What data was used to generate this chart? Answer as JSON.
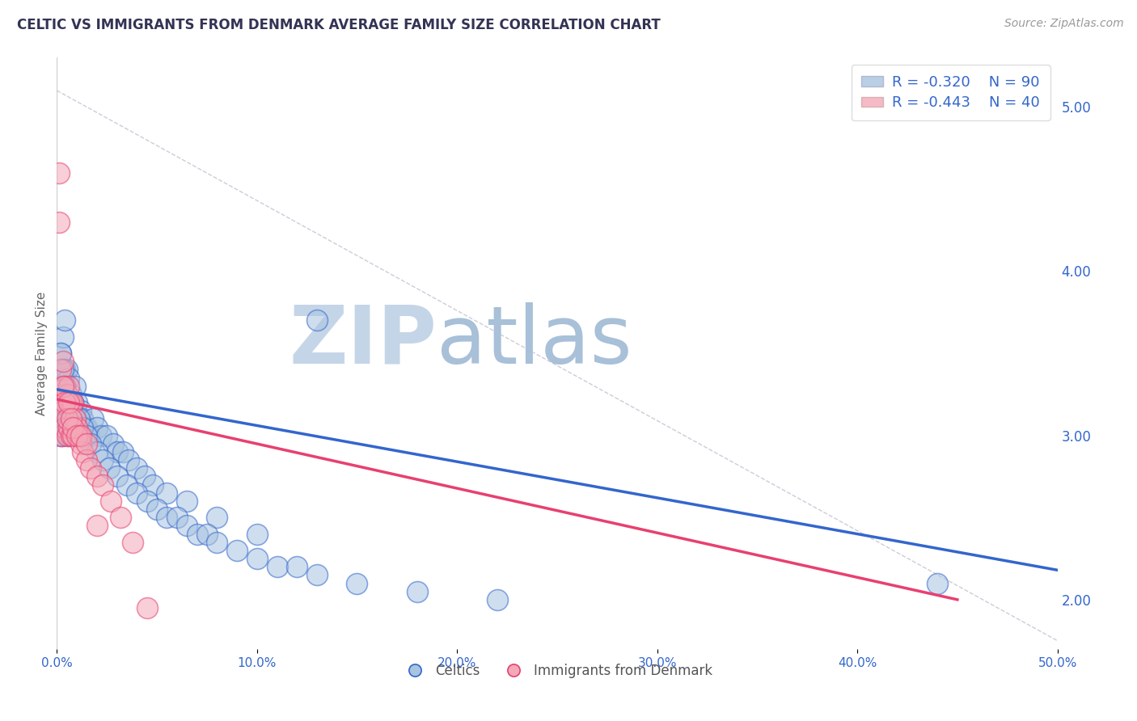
{
  "title": "CELTIC VS IMMIGRANTS FROM DENMARK AVERAGE FAMILY SIZE CORRELATION CHART",
  "source_text": "Source: ZipAtlas.com",
  "ylabel": "Average Family Size",
  "xlim": [
    0.0,
    0.5
  ],
  "ylim": [
    1.7,
    5.3
  ],
  "yticks_right": [
    2.0,
    3.0,
    4.0,
    5.0
  ],
  "xticks": [
    0.0,
    0.1,
    0.2,
    0.3,
    0.4,
    0.5
  ],
  "xtick_labels": [
    "0.0%",
    "10.0%",
    "20.0%",
    "30.0%",
    "40.0%",
    "50.0%"
  ],
  "legend_r1": "R = -0.320",
  "legend_n1": "N = 90",
  "legend_r2": "R = -0.443",
  "legend_n2": "N = 40",
  "legend_label1": "Celtics",
  "legend_label2": "Immigrants from Denmark",
  "blue_color": "#A8C4E0",
  "pink_color": "#F4A8B8",
  "blue_line_color": "#3366CC",
  "pink_line_color": "#E84070",
  "watermark": "ZIPatlas",
  "watermark_color_zip": "#C5D5E8",
  "watermark_color_atlas": "#A8C0D8",
  "title_color": "#333355",
  "blue_trend_x": [
    0.0,
    0.5
  ],
  "blue_trend_y": [
    3.28,
    2.18
  ],
  "pink_trend_x": [
    0.0,
    0.45
  ],
  "pink_trend_y": [
    3.22,
    2.0
  ],
  "ref_line_x": [
    0.0,
    0.5
  ],
  "ref_line_y": [
    5.1,
    1.75
  ],
  "background_color": "#FFFFFF",
  "grid_color": "#DDDDEE",
  "title_fontsize": 12,
  "source_fontsize": 10,
  "legend_fontsize": 13,
  "blue_scatter_x": [
    0.001,
    0.001,
    0.001,
    0.002,
    0.002,
    0.002,
    0.002,
    0.003,
    0.003,
    0.003,
    0.003,
    0.004,
    0.004,
    0.004,
    0.005,
    0.005,
    0.005,
    0.006,
    0.006,
    0.006,
    0.007,
    0.007,
    0.008,
    0.008,
    0.009,
    0.009,
    0.01,
    0.01,
    0.011,
    0.012,
    0.013,
    0.014,
    0.015,
    0.016,
    0.018,
    0.02,
    0.022,
    0.025,
    0.028,
    0.03,
    0.033,
    0.036,
    0.04,
    0.044,
    0.048,
    0.055,
    0.065,
    0.08,
    0.1,
    0.13,
    0.001,
    0.002,
    0.002,
    0.003,
    0.003,
    0.004,
    0.005,
    0.006,
    0.007,
    0.008,
    0.009,
    0.01,
    0.011,
    0.012,
    0.013,
    0.015,
    0.017,
    0.02,
    0.023,
    0.026,
    0.03,
    0.035,
    0.04,
    0.045,
    0.05,
    0.055,
    0.06,
    0.065,
    0.07,
    0.075,
    0.08,
    0.09,
    0.1,
    0.11,
    0.12,
    0.13,
    0.15,
    0.18,
    0.22,
    0.44
  ],
  "blue_scatter_y": [
    3.3,
    3.2,
    3.1,
    3.5,
    3.3,
    3.15,
    3.0,
    3.6,
    3.35,
    3.15,
    3.0,
    3.7,
    3.4,
    3.1,
    3.4,
    3.2,
    3.05,
    3.35,
    3.15,
    3.0,
    3.25,
    3.05,
    3.2,
    3.05,
    3.3,
    3.1,
    3.2,
    3.0,
    3.1,
    3.15,
    3.1,
    3.05,
    3.05,
    3.0,
    3.1,
    3.05,
    3.0,
    3.0,
    2.95,
    2.9,
    2.9,
    2.85,
    2.8,
    2.75,
    2.7,
    2.65,
    2.6,
    2.5,
    2.4,
    3.7,
    3.25,
    3.5,
    3.2,
    3.4,
    3.1,
    3.3,
    3.2,
    3.1,
    3.15,
    3.2,
    3.1,
    3.05,
    3.1,
    3.0,
    3.05,
    3.0,
    2.95,
    2.9,
    2.85,
    2.8,
    2.75,
    2.7,
    2.65,
    2.6,
    2.55,
    2.5,
    2.5,
    2.45,
    2.4,
    2.4,
    2.35,
    2.3,
    2.25,
    2.2,
    2.2,
    2.15,
    2.1,
    2.05,
    2.0,
    2.1
  ],
  "pink_scatter_x": [
    0.001,
    0.001,
    0.002,
    0.002,
    0.002,
    0.003,
    0.003,
    0.004,
    0.004,
    0.005,
    0.005,
    0.006,
    0.006,
    0.007,
    0.007,
    0.008,
    0.008,
    0.009,
    0.01,
    0.011,
    0.012,
    0.013,
    0.015,
    0.017,
    0.02,
    0.023,
    0.027,
    0.032,
    0.038,
    0.045,
    0.003,
    0.004,
    0.005,
    0.006,
    0.007,
    0.008,
    0.01,
    0.012,
    0.015,
    0.02
  ],
  "pink_scatter_y": [
    4.6,
    4.3,
    3.4,
    3.2,
    3.0,
    3.45,
    3.15,
    3.3,
    3.05,
    3.25,
    3.0,
    3.3,
    3.05,
    3.2,
    3.0,
    3.2,
    3.0,
    3.1,
    3.05,
    3.0,
    2.95,
    2.9,
    2.85,
    2.8,
    2.75,
    2.7,
    2.6,
    2.5,
    2.35,
    1.95,
    3.3,
    3.2,
    3.1,
    3.2,
    3.1,
    3.05,
    3.0,
    3.0,
    2.95,
    2.45
  ]
}
